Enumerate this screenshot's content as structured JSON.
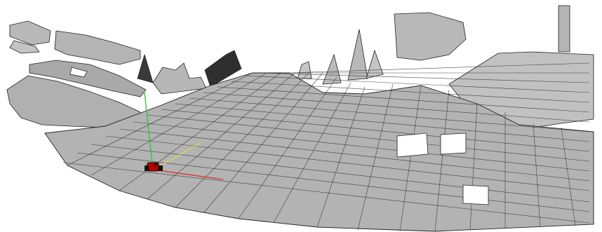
{
  "viewport": {
    "background": "#ffffff",
    "mesh_fill": "#b5b5b5",
    "mesh_fill_dark": "#3a3a3a",
    "mesh_line": "#1e1e1e"
  },
  "axes": {
    "x_color": "#e03030",
    "y_color": "#d8d860",
    "z_color": "#30c030"
  },
  "robot": {
    "icon": "robot-marker-icon",
    "color": "#b00000"
  }
}
